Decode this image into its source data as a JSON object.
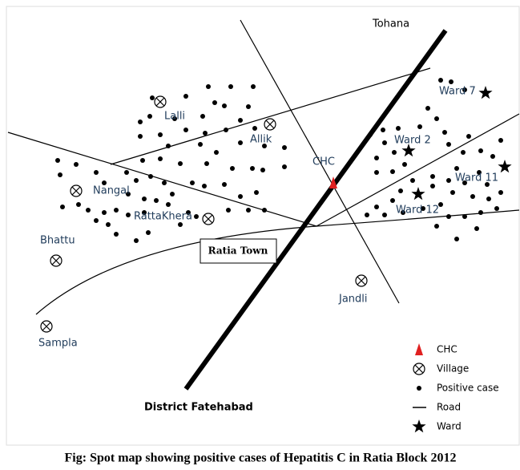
{
  "map": {
    "places": [
      "Tohana",
      "Ward 7",
      "Lalli",
      "Allik",
      "Ward 2",
      "CHC",
      "Ward 11",
      "Nangal",
      "RattaKhera",
      "Ward 12",
      "Bhattu",
      "Jandli",
      "Sampla",
      "District Fatehabad"
    ],
    "town": "Ratia Town"
  },
  "legend": [
    "CHC",
    "Village",
    "Positive case",
    "Road",
    "Ward"
  ],
  "caption": "Fig: Spot map showing positive cases of Hepatitis C in Ratia Block 2012"
}
